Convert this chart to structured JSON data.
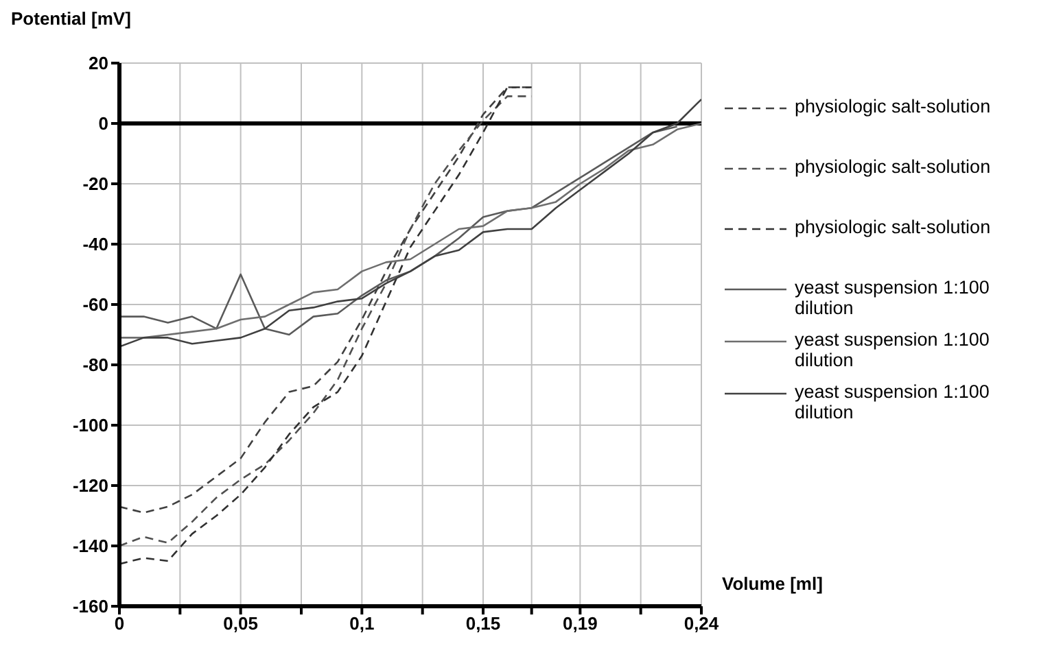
{
  "chart_data": {
    "type": "line",
    "ylabel": "Potential [mV]",
    "xlabel": "Volume [ml]",
    "xlim": [
      0,
      0.24
    ],
    "xticks": [
      0,
      {
        "value": 0.025,
        "label": null
      },
      {
        "value": 0.05,
        "label": "0,05"
      },
      {
        "value": 0.075,
        "label": null
      },
      {
        "value": 0.1,
        "label": "0,1"
      },
      {
        "value": 0.125,
        "label": null
      },
      {
        "value": 0.15,
        "label": "0,15"
      },
      {
        "value": 0.17,
        "label": null
      },
      {
        "value": 0.19,
        "label": "0,19"
      },
      {
        "value": 0.215,
        "label": null
      },
      {
        "value": 0.24,
        "label": "0,24"
      }
    ],
    "ylim": [
      -160,
      20
    ],
    "yticks": [
      -160,
      -140,
      -120,
      -100,
      -80,
      -60,
      -40,
      -20,
      0,
      20
    ],
    "grid": true,
    "legend": "right",
    "marker": "none",
    "ref_lines": [
      {
        "axis": "y",
        "value": 0,
        "color": "#000000"
      }
    ],
    "x": [
      0,
      0.01,
      0.02,
      0.03,
      0.04,
      0.05,
      0.06,
      0.07,
      0.08,
      0.09,
      0.1,
      0.11,
      0.12,
      0.13,
      0.14,
      0.15,
      0.16,
      0.17,
      0.18,
      0.19,
      0.2,
      0.21,
      0.22,
      0.23,
      0.24
    ],
    "series": [
      {
        "name": "physiologic salt-solution",
        "color": "#404040",
        "line_style": "dashed",
        "values": [
          -127,
          -129,
          -127,
          -123,
          -117,
          -111,
          -99,
          -89,
          -87,
          -79,
          -65,
          -49,
          -35,
          -23,
          -11,
          3,
          12,
          12,
          null,
          null,
          null,
          null,
          null,
          null,
          null
        ]
      },
      {
        "name": "physiologic salt-solution",
        "color": "#505050",
        "line_style": "dashed",
        "values": [
          -140,
          -137,
          -139,
          -132,
          -124,
          -118,
          -113,
          -105,
          -96,
          -85,
          -68,
          -53,
          -35,
          -20,
          -9,
          1,
          9,
          9,
          null,
          null,
          null,
          null,
          null,
          null,
          null
        ]
      },
      {
        "name": "physiologic salt-solution",
        "color": "#303030",
        "line_style": "dashed",
        "values": [
          -146,
          -144,
          -145,
          -136,
          -130,
          -123,
          -114,
          -103,
          -94,
          -89,
          -77,
          -59,
          -41,
          -29,
          -17,
          -3,
          12,
          12,
          null,
          null,
          null,
          null,
          null,
          null,
          null
        ]
      },
      {
        "name": "yeast suspension 1:100 dilution",
        "color": "#5a5a5a",
        "line_style": "solid",
        "values": [
          -64,
          -64,
          -66,
          -64,
          -68,
          -50,
          -68,
          -70,
          -64,
          -63,
          -57,
          -52,
          -49,
          -44,
          -38,
          -31,
          -29,
          -28,
          -23,
          -18,
          -13,
          -8,
          -3,
          -1,
          null
        ]
      },
      {
        "name": "yeast suspension 1:100 dilution",
        "color": "#6e6e6e",
        "line_style": "solid",
        "values": [
          -71,
          -71,
          -70,
          -69,
          -68,
          -65,
          -64,
          -60,
          -56,
          -55,
          -49,
          -46,
          -45,
          -40,
          -35,
          -34,
          -29,
          -28,
          -26,
          -20,
          -15,
          -9,
          -7,
          -2,
          0
        ]
      },
      {
        "name": "yeast suspension 1:100 dilution",
        "color": "#404040",
        "line_style": "solid",
        "values": [
          -74,
          -71,
          -71,
          -73,
          -72,
          -71,
          -68,
          -62,
          -61,
          -59,
          -58,
          -53,
          -49,
          -44,
          -42,
          -36,
          -35,
          -35,
          -28,
          -22,
          -16,
          -10,
          -3,
          0,
          8
        ]
      }
    ]
  }
}
